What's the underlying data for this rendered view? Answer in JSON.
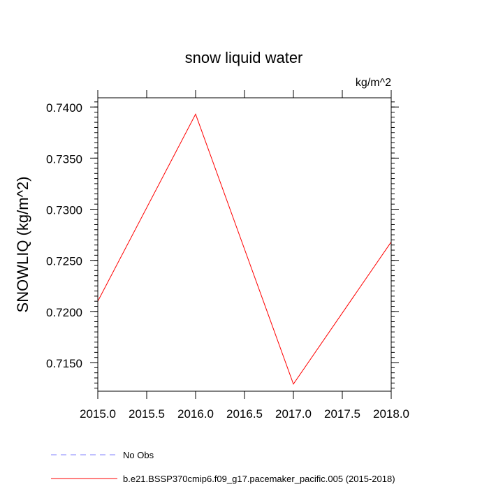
{
  "chart_data": {
    "type": "line",
    "title": "snow liquid water",
    "units": "kg/m^2",
    "ylabel": "SNOWLIQ  (kg/m^2)",
    "xlabel": "",
    "xlim": [
      2015.0,
      2018.0
    ],
    "ylim": [
      0.7122,
      0.7409
    ],
    "x_ticks": [
      "2015.0",
      "2015.5",
      "2016.0",
      "2016.5",
      "2017.0",
      "2017.5",
      "2018.0"
    ],
    "y_ticks": [
      "0.7400",
      "0.7350",
      "0.7300",
      "0.7250",
      "0.7200",
      "0.7150"
    ],
    "grid": false,
    "legend_position": "bottom-left",
    "series": [
      {
        "name": "No Obs",
        "color": "#8080ff",
        "dash": "dashed",
        "x": [],
        "y": []
      },
      {
        "name": "b.e21.BSSP370cmip6.f09_g17.pacemaker_pacific.005 (2015-2018)",
        "color": "#ff0000",
        "dash": "solid",
        "x": [
          2015.0,
          2016.0,
          2017.0,
          2018.0
        ],
        "y": [
          0.721,
          0.7393,
          0.7129,
          0.7268
        ]
      }
    ]
  }
}
